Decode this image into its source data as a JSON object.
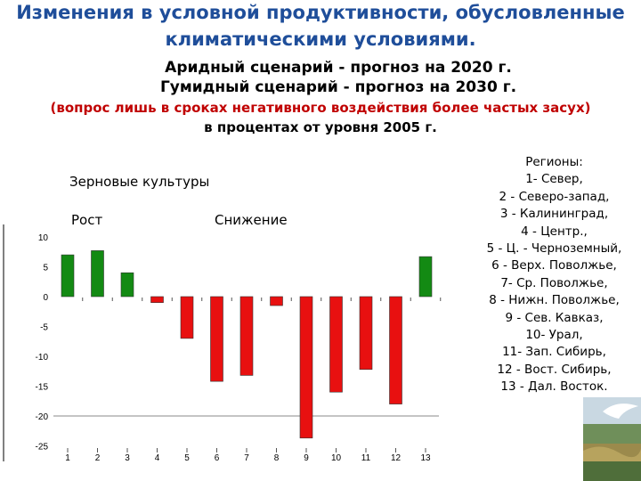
{
  "title_line1": "Изменения в условной продуктивности, обусловленные",
  "title_line2": "климатическими условиями.",
  "subtitle_line1": "Аридный сценарий - прогноз на 2020 г.",
  "subtitle_line2": "Гумидный сценарий - прогноз на 2030 г.",
  "note_line1": "(вопрос лишь в сроках негативного воздействия более частых засух)",
  "note_line2": "в процентах от уровня 2005 г.",
  "regions": {
    "header": "Регионы:",
    "items": [
      "1- Север,",
      "2 - Северо-запад,",
      "3 - Калининград,",
      "4 - Центр.,",
      "5 - Ц. - Черноземный,",
      "6 - Верх. Поволжье,",
      "7- Ср. Поволжье,",
      "8 - Нижн. Поволжье,",
      "9 - Сев. Кавказ,",
      "10- Урал,",
      "11- Зап. Сибирь,",
      "12 - Вост. Сибирь,",
      "13 - Дал. Восток."
    ]
  },
  "chart_data": {
    "type": "bar",
    "title": "Зерновые культуры",
    "annotations": [
      "Рост",
      "Снижение"
    ],
    "categories": [
      "1",
      "2",
      "3",
      "4",
      "5",
      "6",
      "7",
      "8",
      "9",
      "10",
      "11",
      "12",
      "13"
    ],
    "values": [
      7,
      7.7,
      4,
      -1,
      -7,
      -14.2,
      -13.2,
      -1.5,
      -23.7,
      -16,
      -12.2,
      -18,
      6.7
    ],
    "yticks": [
      "10",
      "5",
      "0",
      "-5",
      "-10",
      "-15",
      "-20",
      "-25"
    ],
    "ylim": [
      -25,
      10
    ],
    "colors": {
      "positive": "#138a13",
      "negative": "#e81010"
    },
    "grid": false
  }
}
